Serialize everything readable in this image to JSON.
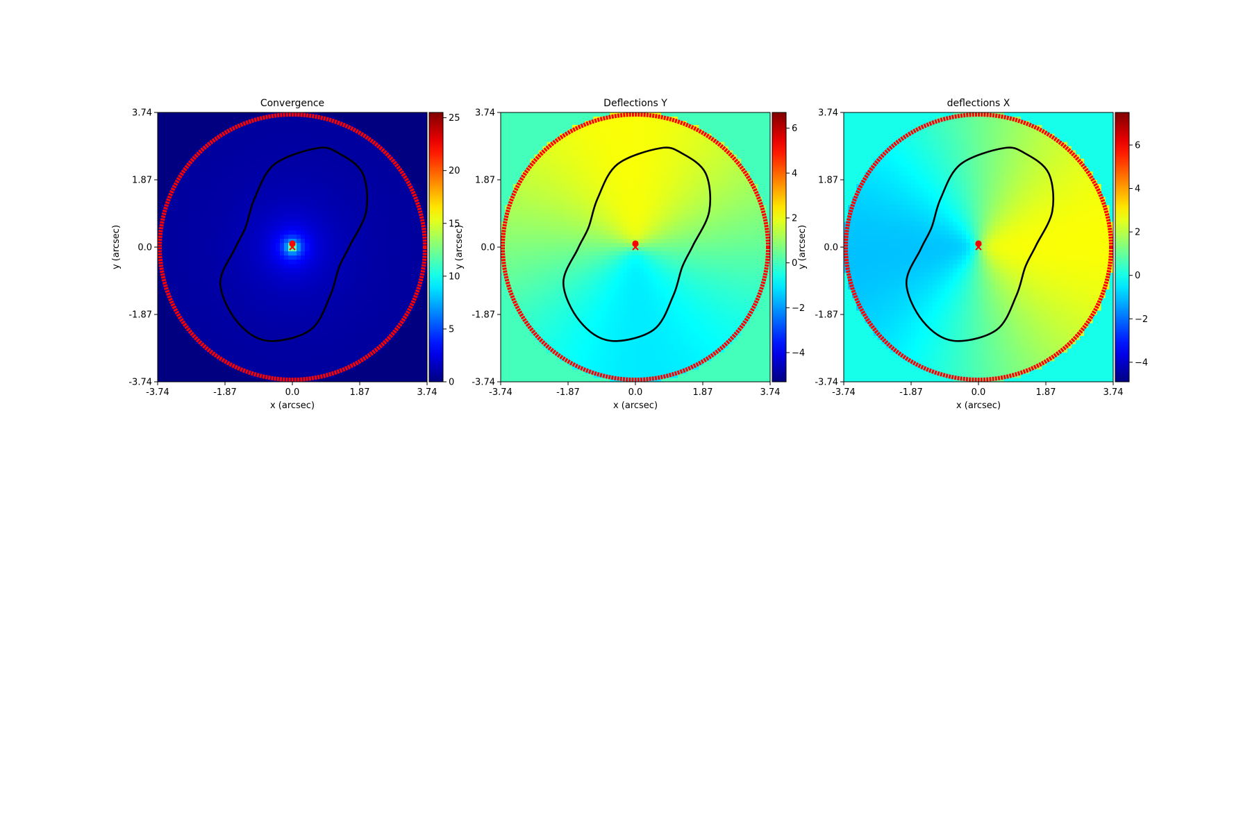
{
  "chart_data": [
    {
      "type": "heatmap",
      "title": "Convergence",
      "xlabel": "x (arcsec)",
      "ylabel": "y (arcsec)",
      "xlim": [
        -3.74,
        3.74
      ],
      "ylim": [
        -3.74,
        3.74
      ],
      "xticks": [
        "-3.74",
        "-1.87",
        "0.0",
        "1.87",
        "3.74"
      ],
      "yticks": [
        "-3.74",
        "-1.87",
        "0.0",
        "1.87",
        "3.74"
      ],
      "colormap": "jet",
      "field": "convergence",
      "background_value": 0,
      "colorbar": {
        "min": 0,
        "max": 25.5,
        "ticks": [
          0,
          5,
          10,
          15,
          20,
          25
        ],
        "tick_labels": [
          "0",
          "5",
          "10",
          "15",
          "20",
          "25"
        ]
      },
      "mask_radius_arcsec": 3.74,
      "critical_curve_color": "#000000",
      "mask_border_color": "#ff0000",
      "centre_marker": {
        "x": 0.0,
        "y": 0.1,
        "symbol": "o",
        "color": "#ff0000"
      },
      "light_centre_marker": {
        "x": 0.0,
        "y": 0.0,
        "symbol": "x",
        "color": "#ff0000"
      }
    },
    {
      "type": "heatmap",
      "title": "Deflections Y",
      "xlabel": "x (arcsec)",
      "ylabel": "y (arcsec)",
      "xlim": [
        -3.74,
        3.74
      ],
      "ylim": [
        -3.74,
        3.74
      ],
      "xticks": [
        "-3.74",
        "-1.87",
        "0.0",
        "1.87",
        "3.74"
      ],
      "yticks": [
        "-3.74",
        "-1.87",
        "0.0",
        "1.87",
        "3.74"
      ],
      "colormap": "jet",
      "field": "deflection_y",
      "background_value": 0,
      "colorbar": {
        "min": -5.3,
        "max": 6.7,
        "ticks": [
          -4,
          -2,
          0,
          2,
          4,
          6
        ],
        "tick_labels": [
          "−4",
          "−2",
          "0",
          "2",
          "4",
          "6"
        ]
      },
      "mask_radius_arcsec": 3.74,
      "critical_curve_color": "#000000",
      "mask_border_color": "#ff0000",
      "centre_marker": {
        "x": 0.0,
        "y": 0.1,
        "symbol": "o",
        "color": "#ff0000"
      },
      "light_centre_marker": {
        "x": 0.0,
        "y": 0.0,
        "symbol": "x",
        "color": "#ff0000"
      }
    },
    {
      "type": "heatmap",
      "title": "deflections X",
      "xlabel": "x (arcsec)",
      "ylabel": "y (arcsec)",
      "xlim": [
        -3.74,
        3.74
      ],
      "ylim": [
        -3.74,
        3.74
      ],
      "xticks": [
        "-3.74",
        "-1.87",
        "0.0",
        "1.87",
        "3.74"
      ],
      "yticks": [
        "-3.74",
        "-1.87",
        "0.0",
        "1.87",
        "3.74"
      ],
      "colormap": "jet",
      "field": "deflection_x",
      "background_value": 0,
      "colorbar": {
        "min": -4.9,
        "max": 7.5,
        "ticks": [
          -4,
          -2,
          0,
          2,
          4,
          6
        ],
        "tick_labels": [
          "−4",
          "−2",
          "0",
          "2",
          "4",
          "6"
        ]
      },
      "mask_radius_arcsec": 3.74,
      "critical_curve_color": "#000000",
      "mask_border_color": "#ff0000",
      "centre_marker": {
        "x": 0.0,
        "y": 0.1,
        "symbol": "o",
        "color": "#ff0000"
      },
      "light_centre_marker": {
        "x": 0.0,
        "y": 0.0,
        "symbol": "x",
        "color": "#ff0000"
      }
    }
  ],
  "critical_curve": [
    [
      0.7,
      2.75
    ],
    [
      1.3,
      2.6
    ],
    [
      1.95,
      2.05
    ],
    [
      2.05,
      1.0
    ],
    [
      1.6,
      0.05
    ],
    [
      1.3,
      -0.55
    ],
    [
      1.05,
      -1.35
    ],
    [
      0.5,
      -2.3
    ],
    [
      -0.7,
      -2.6
    ],
    [
      -1.55,
      -2.05
    ],
    [
      -2.0,
      -1.0
    ],
    [
      -1.6,
      -0.05
    ],
    [
      -1.3,
      0.55
    ],
    [
      -1.05,
      1.35
    ],
    [
      -0.5,
      2.3
    ]
  ]
}
